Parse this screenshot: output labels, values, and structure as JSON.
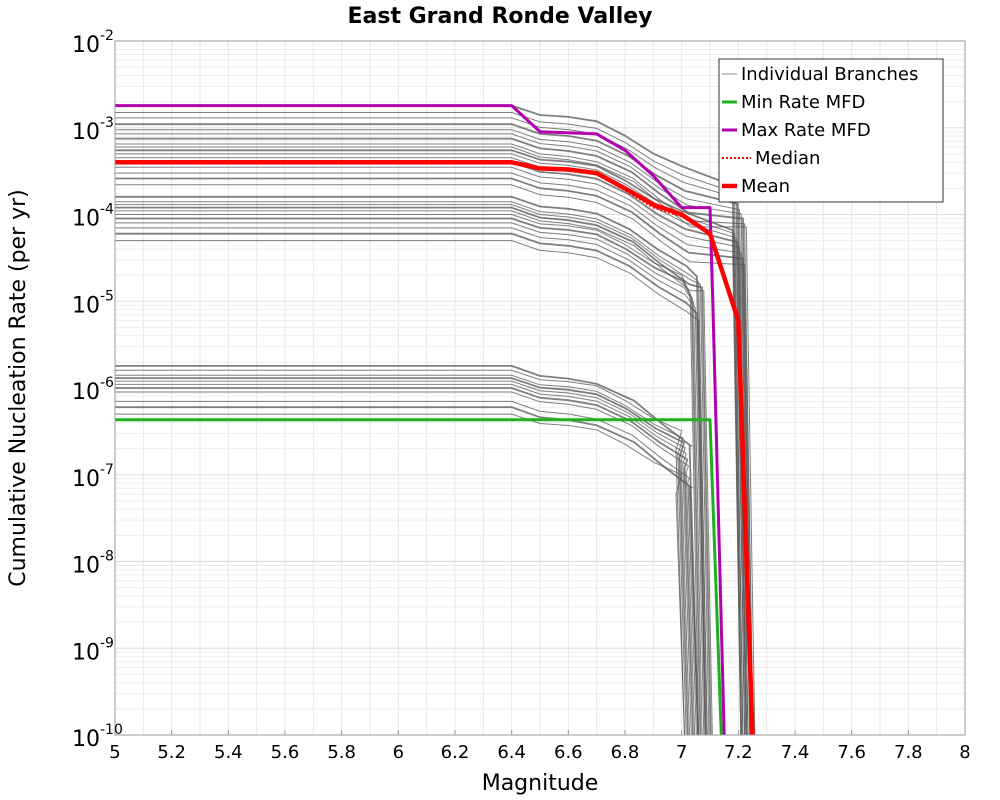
{
  "chart_data": {
    "type": "line",
    "title": "East Grand Ronde Valley",
    "xlabel": "Magnitude",
    "ylabel": "Cumulative Nucleation Rate (per yr)",
    "xlim": [
      5,
      8
    ],
    "ylim_log10": [
      -10,
      -2
    ],
    "y_scale": "log",
    "grid": true,
    "x_ticks": [
      "5",
      "5.2",
      "5.4",
      "5.6",
      "5.8",
      "6",
      "6.2",
      "6.4",
      "6.6",
      "6.8",
      "7",
      "7.2",
      "7.4",
      "7.6",
      "7.8",
      "8"
    ],
    "y_ticks": [
      {
        "base": "10",
        "exp": "-2"
      },
      {
        "base": "10",
        "exp": "-3"
      },
      {
        "base": "10",
        "exp": "-4"
      },
      {
        "base": "10",
        "exp": "-5"
      },
      {
        "base": "10",
        "exp": "-6"
      },
      {
        "base": "10",
        "exp": "-7"
      },
      {
        "base": "10",
        "exp": "-8"
      },
      {
        "base": "10",
        "exp": "-9"
      },
      {
        "base": "10",
        "exp": "-10"
      }
    ],
    "legend_position": "top-right",
    "colors": {
      "branches": "#555555",
      "min": "#1fb01f",
      "max": "#b000b0",
      "median": "#ff0000",
      "mean": "#ff0000"
    },
    "series": [
      {
        "name": "Individual Branches",
        "style": "thin-gray"
      },
      {
        "name": "Min Rate MFD",
        "style": "solid-green",
        "x": [
          5.0,
          6.4,
          6.5,
          7.0,
          7.1,
          7.105,
          7.14
        ],
        "y": [
          4.3e-07,
          4.3e-07,
          4.3e-07,
          4.3e-07,
          4.3e-07,
          1.5e-07,
          1e-10
        ]
      },
      {
        "name": "Max Rate MFD",
        "style": "solid-magenta",
        "x": [
          5.0,
          6.4,
          6.5,
          6.7,
          6.8,
          6.9,
          7.0,
          7.1,
          7.11,
          7.15
        ],
        "y": [
          0.0018,
          0.0018,
          0.0009,
          0.00085,
          0.00055,
          0.00028,
          0.00012,
          0.00012,
          1e-05,
          1e-10
        ]
      },
      {
        "name": "Median",
        "style": "dotted-red",
        "x": [
          5.0,
          6.4,
          6.5,
          6.6,
          6.7,
          6.8,
          6.9,
          7.0,
          7.1,
          7.2,
          7.25
        ],
        "y": [
          0.0004,
          0.0004,
          0.00033,
          0.00032,
          0.00029,
          0.00019,
          0.00012,
          9.5e-05,
          6e-05,
          6e-06,
          1e-10
        ]
      },
      {
        "name": "Mean",
        "style": "thick-red",
        "x": [
          5.0,
          6.4,
          6.5,
          6.6,
          6.7,
          6.8,
          6.9,
          7.0,
          7.1,
          7.2,
          7.25
        ],
        "y": [
          0.0004,
          0.0004,
          0.00034,
          0.00033,
          0.0003,
          0.0002,
          0.00013,
          0.0001,
          6e-05,
          6e-06,
          1e-10
        ]
      }
    ],
    "branch_groups": [
      {
        "levels": [
          0.0018,
          0.0015,
          0.0013,
          0.0011,
          0.00095,
          0.00085,
          0.00075,
          0.00065,
          0.0006,
          0.00055,
          0.0005,
          0.00045,
          0.0004,
          0.00035,
          0.0003,
          0.00026,
          0.00022
        ],
        "cutoff": 7.2
      },
      {
        "levels": [
          0.00016,
          0.00014,
          0.00013,
          0.00012,
          0.00011,
          0.0001,
          9e-05,
          8e-05,
          7e-05,
          6e-05,
          5e-05
        ],
        "cutoff": 7.05
      },
      {
        "levels": [
          1.8e-06,
          1.6e-06,
          1.4e-06,
          1.3e-06,
          1.2e-06,
          1.1e-06,
          1e-06,
          9e-07,
          7e-07,
          6e-07,
          5e-07
        ],
        "cutoff": 7.0
      }
    ]
  }
}
